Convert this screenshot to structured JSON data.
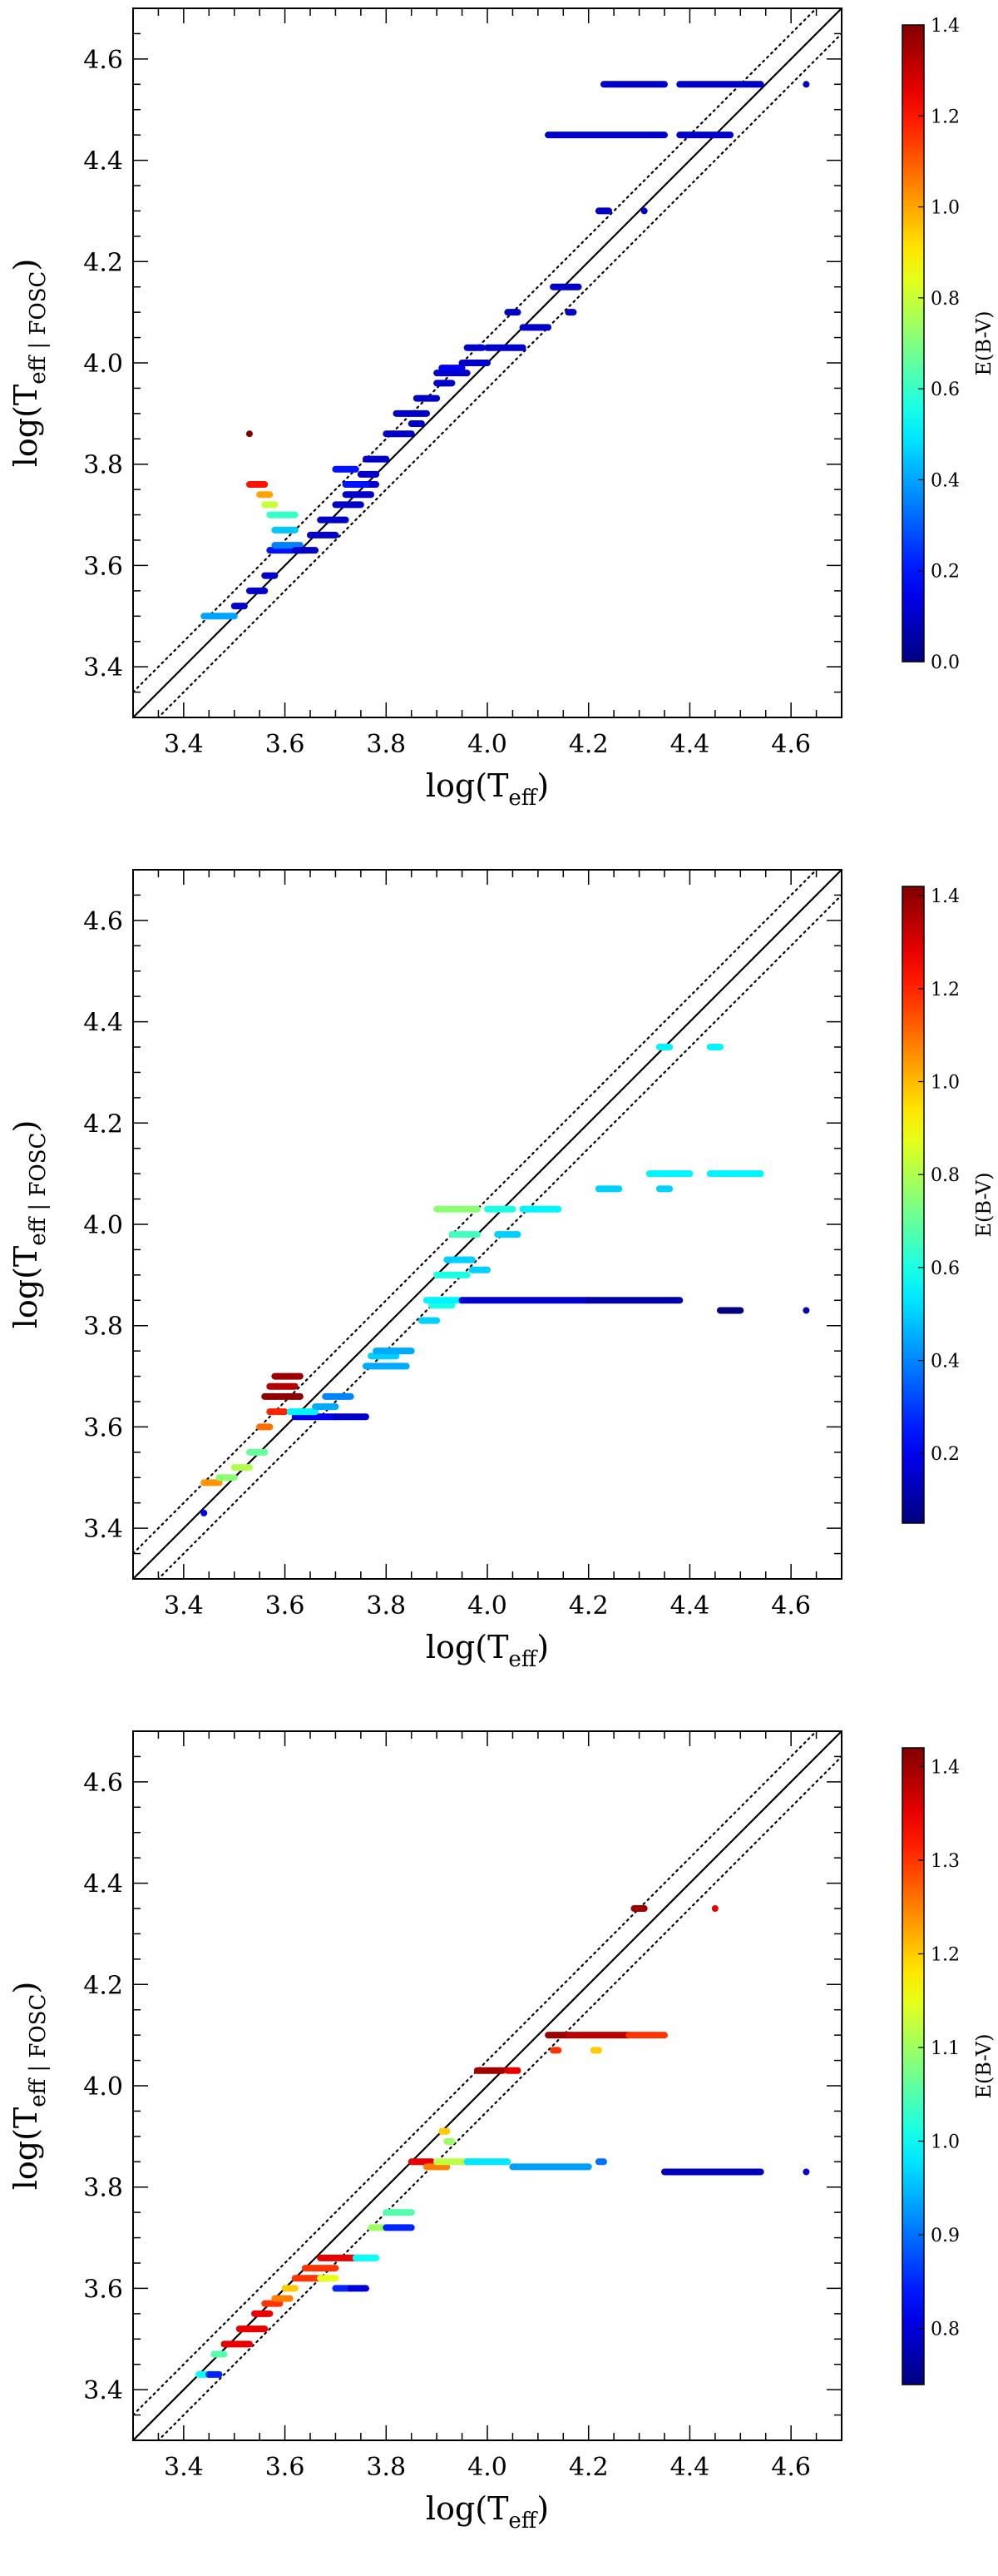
{
  "chart_data": [
    {
      "type": "scatter",
      "panel": "top",
      "xlabel": "log(T_eff)",
      "xlabel_main": "log(T",
      "xlabel_sub": "eff",
      "xlabel_close": ")",
      "ylabel_main": "log(T",
      "ylabel_sub": "eff | FOSC",
      "ylabel_close": ")",
      "xlim": [
        3.3,
        4.7
      ],
      "ylim": [
        3.3,
        4.7
      ],
      "xticks": [
        "3.4",
        "3.6",
        "3.8",
        "4.0",
        "4.2",
        "4.4",
        "4.6"
      ],
      "yticks": [
        "3.4",
        "3.6",
        "3.8",
        "4.0",
        "4.2",
        "4.4",
        "4.6"
      ],
      "lines": {
        "identity": "y = x",
        "offsets": [
          0.05,
          -0.05
        ]
      },
      "colorbar": {
        "label": "E(B-V)",
        "range": [
          0.0,
          1.4
        ],
        "ticks": [
          "0.0",
          "0.2",
          "0.4",
          "0.6",
          "0.8",
          "1.0",
          "1.2",
          "1.4"
        ]
      },
      "segments": [
        {
          "x": [
            3.44,
            3.5
          ],
          "y": 3.5,
          "c": 0.4
        },
        {
          "x": [
            3.5,
            3.52
          ],
          "y": 3.52,
          "c": 0.1
        },
        {
          "x": [
            3.53,
            3.56
          ],
          "y": 3.55,
          "c": 0.1
        },
        {
          "x": [
            3.56,
            3.58
          ],
          "y": 3.58,
          "c": 0.1
        },
        {
          "x": [
            3.57,
            3.64
          ],
          "y": 3.63,
          "c": 0.2
        },
        {
          "x": [
            3.58,
            3.63
          ],
          "y": 3.64,
          "c": 0.35
        },
        {
          "x": [
            3.58,
            3.62
          ],
          "y": 3.67,
          "c": 0.45
        },
        {
          "x": [
            3.57,
            3.62
          ],
          "y": 3.7,
          "c": 0.6
        },
        {
          "x": [
            3.56,
            3.58
          ],
          "y": 3.72,
          "c": 0.8
        },
        {
          "x": [
            3.55,
            3.57
          ],
          "y": 3.74,
          "c": 1.0
        },
        {
          "x": [
            3.53,
            3.56
          ],
          "y": 3.76,
          "c": 1.2
        },
        {
          "x": [
            3.53,
            3.53
          ],
          "y": 3.86,
          "c": 1.4
        },
        {
          "x": [
            3.62,
            3.66
          ],
          "y": 3.63,
          "c": 0.1
        },
        {
          "x": [
            3.65,
            3.7
          ],
          "y": 3.66,
          "c": 0.1
        },
        {
          "x": [
            3.67,
            3.72
          ],
          "y": 3.69,
          "c": 0.1
        },
        {
          "x": [
            3.7,
            3.75
          ],
          "y": 3.72,
          "c": 0.1
        },
        {
          "x": [
            3.72,
            3.77
          ],
          "y": 3.74,
          "c": 0.1
        },
        {
          "x": [
            3.73,
            3.78
          ],
          "y": 3.76,
          "c": 0.1
        },
        {
          "x": [
            3.75,
            3.78
          ],
          "y": 3.78,
          "c": 0.1
        },
        {
          "x": [
            3.76,
            3.8
          ],
          "y": 3.81,
          "c": 0.1
        },
        {
          "x": [
            3.7,
            3.74
          ],
          "y": 3.79,
          "c": 0.2
        },
        {
          "x": [
            3.72,
            3.76
          ],
          "y": 3.76,
          "c": 0.2
        },
        {
          "x": [
            3.8,
            3.85
          ],
          "y": 3.86,
          "c": 0.1
        },
        {
          "x": [
            3.82,
            3.88
          ],
          "y": 3.9,
          "c": 0.1
        },
        {
          "x": [
            3.86,
            3.9
          ],
          "y": 3.93,
          "c": 0.1
        },
        {
          "x": [
            3.85,
            3.87
          ],
          "y": 3.88,
          "c": 0.1
        },
        {
          "x": [
            3.9,
            3.96
          ],
          "y": 3.98,
          "c": 0.1
        },
        {
          "x": [
            3.91,
            3.95
          ],
          "y": 3.99,
          "c": 0.15
        },
        {
          "x": [
            3.9,
            3.93
          ],
          "y": 3.96,
          "c": 0.1
        },
        {
          "x": [
            3.95,
            4.0
          ],
          "y": 4.0,
          "c": 0.1
        },
        {
          "x": [
            3.96,
            3.99
          ],
          "y": 4.03,
          "c": 0.1
        },
        {
          "x": [
            4.0,
            4.07
          ],
          "y": 4.03,
          "c": 0.1
        },
        {
          "x": [
            4.07,
            4.12
          ],
          "y": 4.07,
          "c": 0.1
        },
        {
          "x": [
            4.04,
            4.06
          ],
          "y": 4.1,
          "c": 0.1
        },
        {
          "x": [
            4.13,
            4.18
          ],
          "y": 4.15,
          "c": 0.1
        },
        {
          "x": [
            4.16,
            4.17
          ],
          "y": 4.1,
          "c": 0.1
        },
        {
          "x": [
            4.22,
            4.24
          ],
          "y": 4.3,
          "c": 0.1
        },
        {
          "x": [
            4.31,
            4.31
          ],
          "y": 4.3,
          "c": 0.1
        },
        {
          "x": [
            4.12,
            4.35
          ],
          "y": 4.45,
          "c": 0.1
        },
        {
          "x": [
            4.38,
            4.48
          ],
          "y": 4.45,
          "c": 0.1
        },
        {
          "x": [
            4.23,
            4.35
          ],
          "y": 4.55,
          "c": 0.1
        },
        {
          "x": [
            4.38,
            4.54
          ],
          "y": 4.55,
          "c": 0.1
        },
        {
          "x": [
            4.63,
            4.63
          ],
          "y": 4.55,
          "c": 0.1
        }
      ]
    },
    {
      "type": "scatter",
      "panel": "middle",
      "xlabel_main": "log(T",
      "xlabel_sub": "eff",
      "xlabel_close": ")",
      "ylabel_main": "log(T",
      "ylabel_sub": "eff | FOSC",
      "ylabel_close": ")",
      "xlim": [
        3.3,
        4.7
      ],
      "ylim": [
        3.3,
        4.7
      ],
      "xticks": [
        "3.4",
        "3.6",
        "3.8",
        "4.0",
        "4.2",
        "4.4",
        "4.6"
      ],
      "yticks": [
        "3.4",
        "3.6",
        "3.8",
        "4.0",
        "4.2",
        "4.4",
        "4.6"
      ],
      "colorbar": {
        "label": "E(B-V)",
        "range": [
          0.05,
          1.42
        ],
        "ticks": [
          "0.2",
          "0.4",
          "0.6",
          "0.8",
          "1.0",
          "1.2",
          "1.4"
        ]
      },
      "segments": [
        {
          "x": [
            3.44,
            3.44
          ],
          "y": 3.43,
          "c": 0.2
        },
        {
          "x": [
            3.44,
            3.47
          ],
          "y": 3.49,
          "c": 1.05
        },
        {
          "x": [
            3.47,
            3.5
          ],
          "y": 3.5,
          "c": 0.75
        },
        {
          "x": [
            3.5,
            3.53
          ],
          "y": 3.52,
          "c": 0.8
        },
        {
          "x": [
            3.53,
            3.56
          ],
          "y": 3.55,
          "c": 0.7
        },
        {
          "x": [
            3.55,
            3.57
          ],
          "y": 3.6,
          "c": 1.1
        },
        {
          "x": [
            3.57,
            3.6
          ],
          "y": 3.63,
          "c": 1.2
        },
        {
          "x": [
            3.56,
            3.63
          ],
          "y": 3.66,
          "c": 1.4
        },
        {
          "x": [
            3.57,
            3.62
          ],
          "y": 3.68,
          "c": 1.35
        },
        {
          "x": [
            3.58,
            3.63
          ],
          "y": 3.7,
          "c": 1.38
        },
        {
          "x": [
            3.62,
            3.7
          ],
          "y": 3.62,
          "c": 0.2
        },
        {
          "x": [
            3.7,
            3.76
          ],
          "y": 3.62,
          "c": 0.15
        },
        {
          "x": [
            3.61,
            3.66
          ],
          "y": 3.63,
          "c": 0.55
        },
        {
          "x": [
            3.66,
            3.7
          ],
          "y": 3.64,
          "c": 0.45
        },
        {
          "x": [
            3.68,
            3.73
          ],
          "y": 3.66,
          "c": 0.4
        },
        {
          "x": [
            3.76,
            3.84
          ],
          "y": 3.72,
          "c": 0.45
        },
        {
          "x": [
            3.77,
            3.82
          ],
          "y": 3.74,
          "c": 0.5
        },
        {
          "x": [
            3.78,
            3.85
          ],
          "y": 3.75,
          "c": 0.45
        },
        {
          "x": [
            3.87,
            3.9
          ],
          "y": 3.81,
          "c": 0.5
        },
        {
          "x": [
            3.89,
            3.93
          ],
          "y": 3.84,
          "c": 0.6
        },
        {
          "x": [
            3.88,
            3.95
          ],
          "y": 3.85,
          "c": 0.55
        },
        {
          "x": [
            3.95,
            4.2
          ],
          "y": 3.85,
          "c": 0.15
        },
        {
          "x": [
            4.2,
            4.38
          ],
          "y": 3.85,
          "c": 0.1
        },
        {
          "x": [
            4.46,
            4.5
          ],
          "y": 3.83,
          "c": 0.05
        },
        {
          "x": [
            4.63,
            4.63
          ],
          "y": 3.83,
          "c": 0.1
        },
        {
          "x": [
            3.9,
            3.96
          ],
          "y": 3.9,
          "c": 0.6
        },
        {
          "x": [
            3.92,
            3.97
          ],
          "y": 3.93,
          "c": 0.5
        },
        {
          "x": [
            3.97,
            4.0
          ],
          "y": 3.91,
          "c": 0.5
        },
        {
          "x": [
            3.93,
            3.98
          ],
          "y": 3.98,
          "c": 0.65
        },
        {
          "x": [
            4.02,
            4.06
          ],
          "y": 3.98,
          "c": 0.5
        },
        {
          "x": [
            3.9,
            3.98
          ],
          "y": 4.03,
          "c": 0.75
        },
        {
          "x": [
            4.0,
            4.05
          ],
          "y": 4.03,
          "c": 0.6
        },
        {
          "x": [
            4.07,
            4.14
          ],
          "y": 4.03,
          "c": 0.55
        },
        {
          "x": [
            4.22,
            4.26
          ],
          "y": 4.07,
          "c": 0.5
        },
        {
          "x": [
            4.32,
            4.4
          ],
          "y": 4.1,
          "c": 0.55
        },
        {
          "x": [
            4.44,
            4.54
          ],
          "y": 4.1,
          "c": 0.55
        },
        {
          "x": [
            4.34,
            4.36
          ],
          "y": 4.07,
          "c": 0.5
        },
        {
          "x": [
            4.34,
            4.36
          ],
          "y": 4.35,
          "c": 0.55
        },
        {
          "x": [
            4.44,
            4.46
          ],
          "y": 4.35,
          "c": 0.55
        }
      ]
    },
    {
      "type": "scatter",
      "panel": "bottom",
      "xlabel_main": "log(T",
      "xlabel_sub": "eff",
      "xlabel_close": ")",
      "ylabel_main": "log(T",
      "ylabel_sub": "eff | FOSC",
      "ylabel_close": ")",
      "xlim": [
        3.3,
        4.7
      ],
      "ylim": [
        3.3,
        4.7
      ],
      "xticks": [
        "3.4",
        "3.6",
        "3.8",
        "4.0",
        "4.2",
        "4.4",
        "4.6"
      ],
      "yticks": [
        "3.4",
        "3.6",
        "3.8",
        "4.0",
        "4.2",
        "4.4",
        "4.6"
      ],
      "colorbar": {
        "label": "E(B-V)",
        "range": [
          0.74,
          1.42
        ],
        "ticks": [
          "0.8",
          "0.9",
          "1.0",
          "1.1",
          "1.2",
          "1.3",
          "1.4"
        ]
      },
      "segments": [
        {
          "x": [
            3.43,
            3.45
          ],
          "y": 3.43,
          "c": 1.0
        },
        {
          "x": [
            3.45,
            3.47
          ],
          "y": 3.43,
          "c": 0.85
        },
        {
          "x": [
            3.46,
            3.48
          ],
          "y": 3.47,
          "c": 1.05
        },
        {
          "x": [
            3.48,
            3.53
          ],
          "y": 3.49,
          "c": 1.35
        },
        {
          "x": [
            3.51,
            3.56
          ],
          "y": 3.52,
          "c": 1.35
        },
        {
          "x": [
            3.54,
            3.57
          ],
          "y": 3.55,
          "c": 1.35
        },
        {
          "x": [
            3.56,
            3.59
          ],
          "y": 3.57,
          "c": 1.3
        },
        {
          "x": [
            3.58,
            3.61
          ],
          "y": 3.58,
          "c": 1.25
        },
        {
          "x": [
            3.6,
            3.62
          ],
          "y": 3.6,
          "c": 1.2
        },
        {
          "x": [
            3.62,
            3.68
          ],
          "y": 3.62,
          "c": 1.3
        },
        {
          "x": [
            3.67,
            3.7
          ],
          "y": 3.62,
          "c": 1.15
        },
        {
          "x": [
            3.7,
            3.73
          ],
          "y": 3.6,
          "c": 0.85
        },
        {
          "x": [
            3.73,
            3.76
          ],
          "y": 3.6,
          "c": 0.8
        },
        {
          "x": [
            3.64,
            3.7
          ],
          "y": 3.64,
          "c": 1.3
        },
        {
          "x": [
            3.67,
            3.75
          ],
          "y": 3.66,
          "c": 1.35
        },
        {
          "x": [
            3.74,
            3.78
          ],
          "y": 3.66,
          "c": 1.0
        },
        {
          "x": [
            3.77,
            3.8
          ],
          "y": 3.72,
          "c": 1.1
        },
        {
          "x": [
            3.8,
            3.85
          ],
          "y": 3.72,
          "c": 0.85
        },
        {
          "x": [
            3.8,
            3.85
          ],
          "y": 3.75,
          "c": 1.05
        },
        {
          "x": [
            3.85,
            3.89
          ],
          "y": 3.85,
          "c": 1.35
        },
        {
          "x": [
            3.88,
            3.92
          ],
          "y": 3.84,
          "c": 1.25
        },
        {
          "x": [
            3.9,
            3.98
          ],
          "y": 3.85,
          "c": 1.12
        },
        {
          "x": [
            3.96,
            4.04
          ],
          "y": 3.85,
          "c": 0.98
        },
        {
          "x": [
            4.05,
            4.2
          ],
          "y": 3.84,
          "c": 0.93
        },
        {
          "x": [
            4.22,
            4.23
          ],
          "y": 3.85,
          "c": 0.9
        },
        {
          "x": [
            3.91,
            3.92
          ],
          "y": 3.91,
          "c": 1.2
        },
        {
          "x": [
            3.92,
            3.93
          ],
          "y": 3.89,
          "c": 1.1
        },
        {
          "x": [
            3.98,
            4.03
          ],
          "y": 4.03,
          "c": 1.4
        },
        {
          "x": [
            4.04,
            4.06
          ],
          "y": 4.03,
          "c": 1.35
        },
        {
          "x": [
            4.12,
            4.16
          ],
          "y": 4.1,
          "c": 1.4
        },
        {
          "x": [
            4.13,
            4.14
          ],
          "y": 4.07,
          "c": 1.3
        },
        {
          "x": [
            4.16,
            4.28
          ],
          "y": 4.1,
          "c": 1.38
        },
        {
          "x": [
            4.28,
            4.35
          ],
          "y": 4.1,
          "c": 1.3
        },
        {
          "x": [
            4.21,
            4.22
          ],
          "y": 4.07,
          "c": 1.2
        },
        {
          "x": [
            4.29,
            4.31
          ],
          "y": 4.35,
          "c": 1.4
        },
        {
          "x": [
            4.45,
            4.45
          ],
          "y": 4.35,
          "c": 1.35
        },
        {
          "x": [
            4.35,
            4.54
          ],
          "y": 3.83,
          "c": 0.78
        },
        {
          "x": [
            4.63,
            4.63
          ],
          "y": 3.83,
          "c": 0.8
        }
      ]
    }
  ]
}
